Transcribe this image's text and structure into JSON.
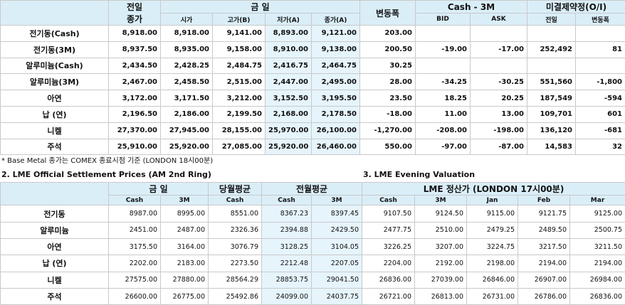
{
  "top_table": {
    "groups": [
      "전일",
      "금 일",
      "변동폭",
      "Cash - 3M",
      "미결제약정(O/I)"
    ],
    "prev_sub": "종가",
    "subheaders": [
      "시가",
      "고가(B)",
      "저가(A)",
      "종가(A)",
      "BID",
      "ASK",
      "전일",
      "변동폭"
    ],
    "rows": [
      {
        "name": "전기동(Cash)",
        "cells": [
          "8,918.00",
          "8,918.00",
          "9,141.00",
          "8,893.00",
          "9,121.00",
          "203.00"
        ]
      },
      {
        "name": "전기동(3M)",
        "cells": [
          "8,937.50",
          "8,935.00",
          "9,158.00",
          "8,910.00",
          "9,138.00",
          "200.50",
          "-19.00",
          "-17.00",
          "252,492",
          "81"
        ]
      },
      {
        "name": "알루미늄(Cash)",
        "cells": [
          "2,434.50",
          "2,428.25",
          "2,484.75",
          "2,416.75",
          "2,464.75",
          "30.25"
        ]
      },
      {
        "name": "알루미늄(3M)",
        "cells": [
          "2,467.00",
          "2,458.50",
          "2,515.00",
          "2,447.00",
          "2,495.00",
          "28.00",
          "-34.25",
          "-30.25",
          "551,560",
          "-1,800"
        ]
      },
      {
        "name": "아연",
        "cells": [
          "3,172.00",
          "3,171.50",
          "3,212.00",
          "3,152.50",
          "3,195.50",
          "23.50",
          "18.25",
          "20.25",
          "187,549",
          "-594"
        ]
      },
      {
        "name": "납 (연)",
        "cells": [
          "2,196.50",
          "2,186.00",
          "2,199.50",
          "2,168.00",
          "2,178.50",
          "-18.00",
          "11.00",
          "13.00",
          "109,701",
          "601"
        ]
      },
      {
        "name": "니켈",
        "cells": [
          "27,370.00",
          "27,945.00",
          "28,155.00",
          "25,970.00",
          "26,100.00",
          "-1,270.00",
          "-208.00",
          "-198.00",
          "136,120",
          "-681"
        ]
      },
      {
        "name": "주석",
        "cells": [
          "25,910.00",
          "25,920.00",
          "27,085.00",
          "25,920.00",
          "26,460.00",
          "550.00",
          "-97.00",
          "-87.00",
          "14,583",
          "32"
        ]
      }
    ]
  },
  "note": "* Base Metal 종가는 COMEX 종료시점 기준 (LONDON 18시00분)",
  "section2_title": "2. LME Official Settlement Prices (AM 2nd Ring)",
  "section3_title": "3. LME Evening Valuation",
  "bottom_table": {
    "groups": [
      "금 일",
      "당월평균",
      "전월평균",
      "LME 정산가 (LONDON 17시00분)"
    ],
    "subheaders": [
      "Cash",
      "3M",
      "Cash",
      "Cash",
      "3M",
      "Cash",
      "3M",
      "Jan",
      "Feb",
      "Mar"
    ],
    "rows": [
      {
        "name": "전기동",
        "cells": [
          "8987.00",
          "8995.00",
          "8551.00",
          "8367.23",
          "8397.45",
          "9107.50",
          "9124.50",
          "9115.00",
          "9121.75",
          "9125.00"
        ]
      },
      {
        "name": "알루미늄",
        "cells": [
          "2451.00",
          "2487.00",
          "2326.36",
          "2394.88",
          "2429.50",
          "2477.75",
          "2510.00",
          "2479.25",
          "2489.50",
          "2500.75"
        ]
      },
      {
        "name": "아연",
        "cells": [
          "3175.50",
          "3164.00",
          "3076.79",
          "3128.25",
          "3104.05",
          "3226.25",
          "3207.00",
          "3224.75",
          "3217.50",
          "3211.50"
        ]
      },
      {
        "name": "납 (연)",
        "cells": [
          "2202.00",
          "2183.00",
          "2273.50",
          "2212.48",
          "2207.05",
          "2204.00",
          "2192.00",
          "2198.00",
          "2194.00",
          "2194.00"
        ]
      },
      {
        "name": "니켈",
        "cells": [
          "27575.00",
          "27880.00",
          "28564.29",
          "28853.75",
          "29041.50",
          "26836.00",
          "27039.00",
          "26846.00",
          "26907.00",
          "26984.00"
        ]
      },
      {
        "name": "주석",
        "cells": [
          "26600.00",
          "26775.00",
          "25492.86",
          "24099.00",
          "24037.75",
          "26721.00",
          "26813.00",
          "26731.00",
          "26786.00",
          "26836.00"
        ]
      }
    ]
  }
}
